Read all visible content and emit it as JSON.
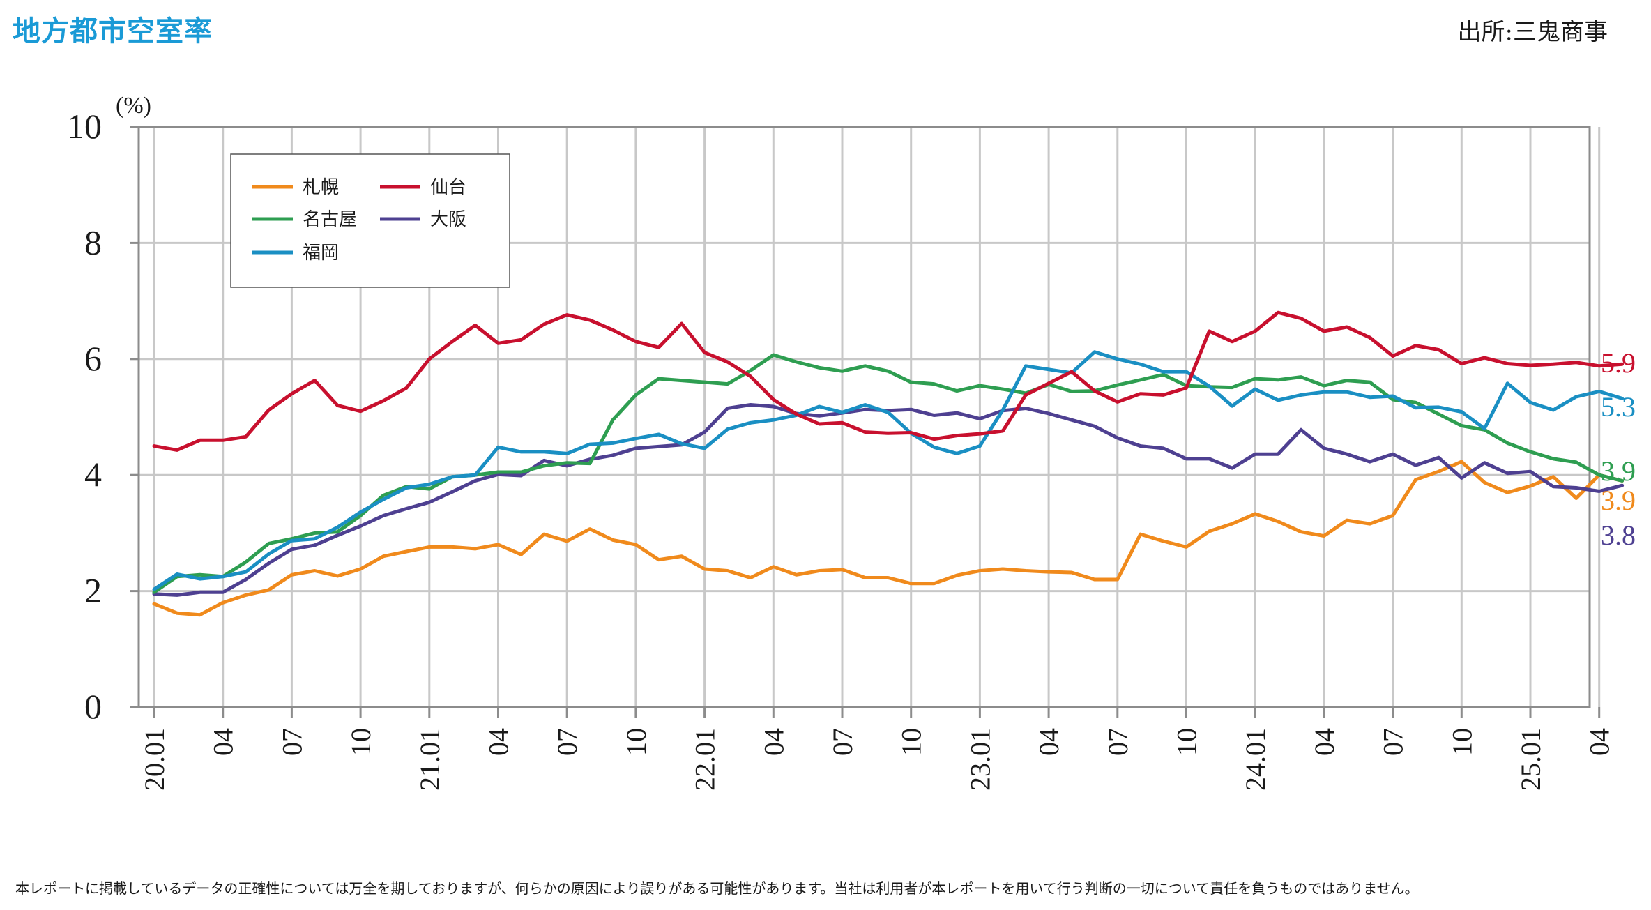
{
  "title": "地方都市空室率",
  "source": "出所:三鬼商事",
  "footnote": "本レポートに掲載しているデータの正確性については万全を期しておりますが、何らかの原因により誤りがある可能性があります。当社は利用者が本レポートを用いて行う判断の一切について責任を負うものではありません。",
  "chart_data": {
    "type": "line",
    "title": "地方都市空室率",
    "ylabel": "(%)",
    "ylim": [
      0,
      10
    ],
    "yticks": [
      0,
      2,
      4,
      6,
      8,
      10
    ],
    "grid": true,
    "legend_position": "top-left",
    "x_tick_labels": [
      {
        "index": 0,
        "label": "20.01"
      },
      {
        "index": 3,
        "label": "04"
      },
      {
        "index": 6,
        "label": "07"
      },
      {
        "index": 9,
        "label": "10"
      },
      {
        "index": 12,
        "label": "21.01"
      },
      {
        "index": 15,
        "label": "04"
      },
      {
        "index": 18,
        "label": "07"
      },
      {
        "index": 21,
        "label": "10"
      },
      {
        "index": 24,
        "label": "22.01"
      },
      {
        "index": 27,
        "label": "04"
      },
      {
        "index": 30,
        "label": "07"
      },
      {
        "index": 33,
        "label": "10"
      },
      {
        "index": 36,
        "label": "23.01"
      },
      {
        "index": 39,
        "label": "04"
      },
      {
        "index": 42,
        "label": "07"
      },
      {
        "index": 45,
        "label": "10"
      },
      {
        "index": 48,
        "label": "24.01"
      },
      {
        "index": 51,
        "label": "04"
      },
      {
        "index": 54,
        "label": "07"
      },
      {
        "index": 57,
        "label": "10"
      },
      {
        "index": 60,
        "label": "25.01"
      },
      {
        "index": 63,
        "label": "04"
      }
    ],
    "series": [
      {
        "name": "札幌",
        "color": "#f08a1c",
        "end_label": "3.9",
        "values": [
          1.78,
          1.62,
          1.59,
          1.8,
          1.93,
          2.02,
          2.28,
          2.35,
          2.26,
          2.38,
          2.6,
          2.68,
          2.76,
          2.76,
          2.73,
          2.8,
          2.63,
          2.98,
          2.86,
          3.07,
          2.88,
          2.8,
          2.54,
          2.6,
          2.38,
          2.35,
          2.23,
          2.42,
          2.28,
          2.35,
          2.37,
          2.23,
          2.23,
          2.13,
          2.13,
          2.27,
          2.35,
          2.38,
          2.35,
          2.33,
          2.32,
          2.2,
          2.2,
          2.98,
          2.86,
          2.76,
          3.03,
          3.16,
          3.33,
          3.2,
          3.02,
          2.95,
          3.22,
          3.16,
          3.3,
          3.92,
          4.06,
          4.23,
          3.87,
          3.7,
          3.81,
          3.97,
          3.6,
          4.0,
          3.9
        ]
      },
      {
        "name": "仙台",
        "color": "#c8102e",
        "end_label": "5.9",
        "values": [
          4.5,
          4.43,
          4.6,
          4.6,
          4.66,
          5.12,
          5.4,
          5.63,
          5.2,
          5.1,
          5.28,
          5.5,
          6.0,
          6.3,
          6.58,
          6.27,
          6.33,
          6.6,
          6.76,
          6.67,
          6.5,
          6.3,
          6.2,
          6.61,
          6.11,
          5.95,
          5.7,
          5.3,
          5.05,
          4.88,
          4.9,
          4.74,
          4.72,
          4.73,
          4.62,
          4.68,
          4.71,
          4.76,
          5.38,
          5.58,
          5.78,
          5.45,
          5.26,
          5.4,
          5.38,
          5.5,
          6.48,
          6.3,
          6.48,
          6.8,
          6.7,
          6.48,
          6.55,
          6.37,
          6.05,
          6.23,
          6.16,
          5.92,
          6.02,
          5.92,
          5.89,
          5.91,
          5.94,
          5.88,
          5.91
        ]
      },
      {
        "name": "名古屋",
        "color": "#2e9e51",
        "end_label": "3.9",
        "values": [
          1.98,
          2.25,
          2.28,
          2.25,
          2.5,
          2.82,
          2.9,
          3.0,
          3.02,
          3.3,
          3.65,
          3.8,
          3.76,
          3.97,
          4.0,
          4.05,
          4.05,
          4.16,
          4.21,
          4.2,
          4.95,
          5.38,
          5.66,
          5.63,
          5.6,
          5.57,
          5.8,
          6.07,
          5.95,
          5.85,
          5.79,
          5.88,
          5.79,
          5.6,
          5.57,
          5.45,
          5.54,
          5.48,
          5.41,
          5.56,
          5.44,
          5.45,
          5.55,
          5.64,
          5.73,
          5.54,
          5.52,
          5.51,
          5.66,
          5.64,
          5.69,
          5.54,
          5.63,
          5.6,
          5.3,
          5.25,
          5.05,
          4.85,
          4.78,
          4.55,
          4.4,
          4.28,
          4.22,
          4.0,
          3.9
        ]
      },
      {
        "name": "大阪",
        "color": "#4e4091",
        "end_label": "3.8",
        "values": [
          1.95,
          1.93,
          1.98,
          1.98,
          2.2,
          2.48,
          2.72,
          2.79,
          2.96,
          3.12,
          3.3,
          3.42,
          3.53,
          3.71,
          3.9,
          4.01,
          3.99,
          4.25,
          4.16,
          4.27,
          4.34,
          4.46,
          4.49,
          4.52,
          4.74,
          5.15,
          5.21,
          5.18,
          5.06,
          5.02,
          5.07,
          5.13,
          5.11,
          5.13,
          5.03,
          5.07,
          4.97,
          5.11,
          5.15,
          5.06,
          4.95,
          4.84,
          4.64,
          4.5,
          4.46,
          4.28,
          4.28,
          4.12,
          4.36,
          4.36,
          4.78,
          4.46,
          4.36,
          4.23,
          4.36,
          4.17,
          4.3,
          3.95,
          4.21,
          4.03,
          4.06,
          3.8,
          3.78,
          3.72,
          3.82
        ]
      },
      {
        "name": "福岡",
        "color": "#1a8fc3",
        "end_label": "5.3",
        "values": [
          2.03,
          2.29,
          2.21,
          2.25,
          2.33,
          2.64,
          2.87,
          2.9,
          3.1,
          3.36,
          3.58,
          3.78,
          3.84,
          3.97,
          4.0,
          4.48,
          4.4,
          4.4,
          4.37,
          4.53,
          4.55,
          4.63,
          4.7,
          4.54,
          4.46,
          4.79,
          4.9,
          4.95,
          5.03,
          5.18,
          5.08,
          5.21,
          5.08,
          4.72,
          4.48,
          4.37,
          4.5,
          5.12,
          5.88,
          5.82,
          5.76,
          6.12,
          6.0,
          5.91,
          5.78,
          5.78,
          5.53,
          5.19,
          5.48,
          5.29,
          5.38,
          5.43,
          5.43,
          5.34,
          5.36,
          5.16,
          5.17,
          5.09,
          4.8,
          5.58,
          5.25,
          5.12,
          5.35,
          5.44,
          5.32
        ]
      }
    ],
    "legend": [
      "札幌",
      "仙台",
      "名古屋",
      "大阪",
      "福岡"
    ]
  }
}
